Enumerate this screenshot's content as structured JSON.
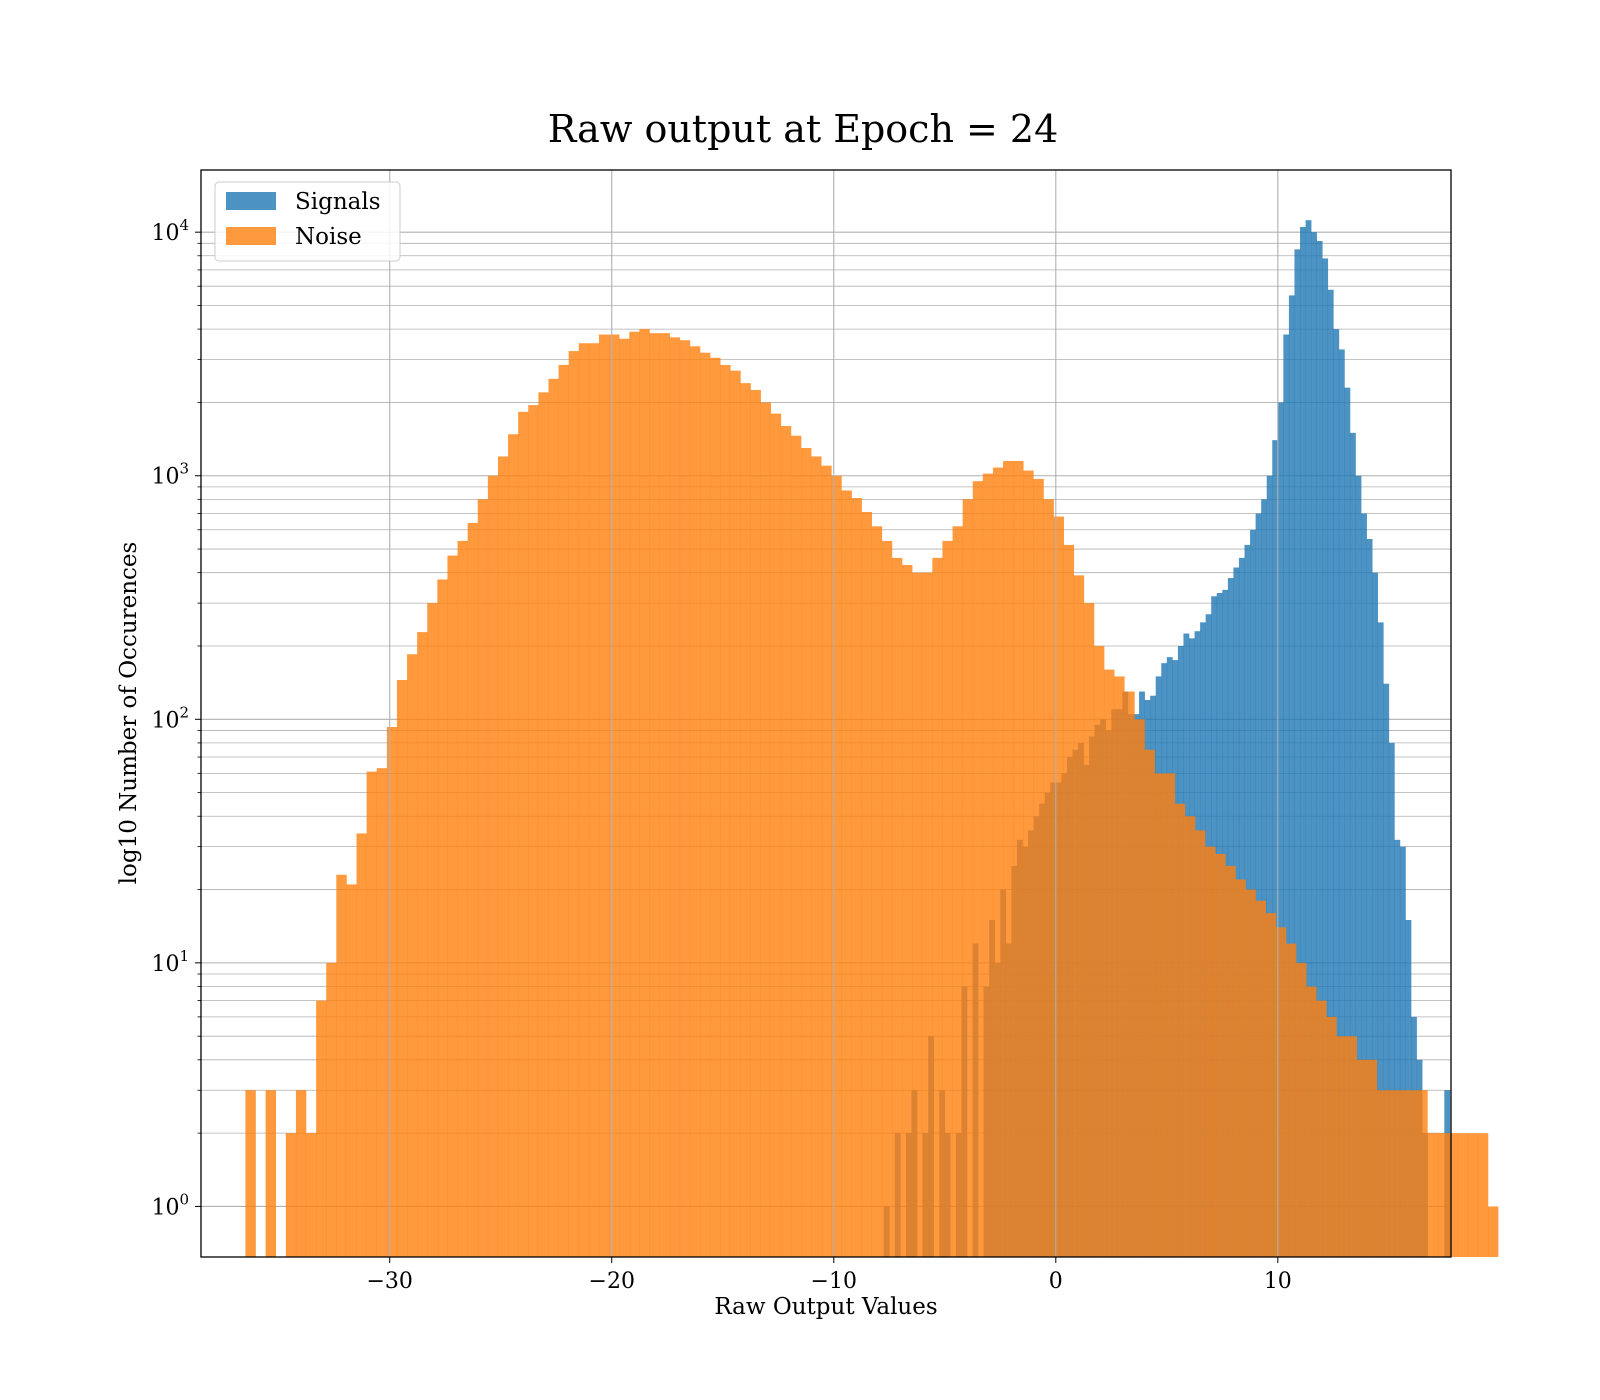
{
  "chart_data": {
    "type": "bar",
    "title": "Raw output at Epoch = 24",
    "xlabel": "Raw Output Values",
    "ylabel": "log10 Number of Occurences",
    "xlim": [
      -38.5,
      17.8
    ],
    "ylim": [
      0.62,
      18000
    ],
    "yscale": "log",
    "grid": true,
    "legend_position": "upper-left",
    "xticks": [
      {
        "value": -30,
        "label": "−30"
      },
      {
        "value": -20,
        "label": "−20"
      },
      {
        "value": -10,
        "label": "−10"
      },
      {
        "value": 0,
        "label": "0"
      },
      {
        "value": 10,
        "label": "10"
      }
    ],
    "yticks": [
      {
        "value": 1,
        "base": "10",
        "exp": "0"
      },
      {
        "value": 10,
        "base": "10",
        "exp": "1"
      },
      {
        "value": 100,
        "base": "10",
        "exp": "2"
      },
      {
        "value": 1000,
        "base": "10",
        "exp": "3"
      },
      {
        "value": 10000,
        "base": "10",
        "exp": "4"
      }
    ],
    "series": [
      {
        "name": "Signals",
        "color": "#1f77b4",
        "opacity": 0.8,
        "x_start": -7.75,
        "bin_width": 0.25,
        "values": [
          1,
          0,
          2,
          0,
          2,
          3,
          0,
          2,
          5,
          0,
          3,
          2,
          0,
          2,
          8,
          0,
          12,
          0,
          8,
          15,
          10,
          20,
          12,
          25,
          32,
          30,
          35,
          40,
          45,
          50,
          55,
          55,
          60,
          70,
          75,
          80,
          65,
          85,
          95,
          100,
          90,
          110,
          110,
          130,
          105,
          105,
          130,
          120,
          125,
          150,
          170,
          180,
          175,
          200,
          225,
          215,
          230,
          250,
          270,
          320,
          330,
          340,
          380,
          420,
          460,
          520,
          600,
          700,
          800,
          1000,
          1400,
          2000,
          3800,
          5500,
          8500,
          10500,
          11200,
          10000,
          9200,
          7800,
          5800,
          4000,
          3300,
          2300,
          1500,
          1000,
          700,
          550,
          400,
          250,
          140,
          80,
          32,
          30,
          15,
          6,
          4,
          2,
          0,
          0,
          0,
          3
        ]
      },
      {
        "name": "Noise",
        "color": "#ff7f0e",
        "opacity": 0.8,
        "x_start": -36.5,
        "bin_width": 0.455,
        "values": [
          3,
          0,
          3,
          0,
          2,
          3,
          2,
          7,
          10,
          23,
          21,
          34,
          61,
          63,
          93,
          145,
          185,
          228,
          300,
          375,
          470,
          540,
          640,
          800,
          1000,
          1200,
          1480,
          1830,
          1950,
          2200,
          2500,
          2850,
          3250,
          3500,
          3500,
          3800,
          3800,
          3650,
          3900,
          4000,
          3850,
          3850,
          3700,
          3600,
          3400,
          3200,
          3050,
          2850,
          2700,
          2400,
          2250,
          2000,
          1800,
          1600,
          1460,
          1300,
          1200,
          1100,
          1000,
          870,
          810,
          710,
          620,
          540,
          460,
          430,
          400,
          400,
          460,
          540,
          620,
          800,
          950,
          1020,
          1080,
          1150,
          1150,
          1050,
          970,
          800,
          680,
          520,
          390,
          300,
          200,
          160,
          150,
          130,
          100,
          75,
          60,
          60,
          45,
          40,
          35,
          30,
          28,
          25,
          22,
          20,
          18,
          16,
          14,
          12,
          10,
          8,
          7,
          6,
          5,
          5,
          4,
          4,
          3,
          3,
          3,
          3,
          3,
          2,
          2,
          2,
          2,
          2,
          2,
          1
        ]
      }
    ]
  }
}
